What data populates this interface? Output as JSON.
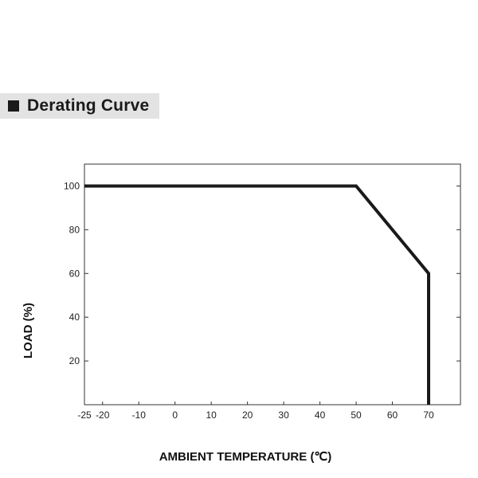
{
  "header": {
    "title": "Derating Curve",
    "square_color": "#1a1a1a",
    "band_color": "#e3e3e3"
  },
  "chart_data": {
    "type": "line",
    "title": "Derating Curve",
    "xlabel": "AMBIENT TEMPERATURE (℃)",
    "ylabel": "LOAD (%)",
    "xlim": [
      -25,
      70
    ],
    "ylim": [
      0,
      110
    ],
    "xticks": [
      -25,
      -20,
      -10,
      0,
      10,
      20,
      30,
      40,
      50,
      60,
      70
    ],
    "yticks": [
      20,
      40,
      60,
      80,
      100
    ],
    "grid": false,
    "series": [
      {
        "x": [
          -25,
          50,
          70,
          70
        ],
        "y": [
          100,
          100,
          60,
          0
        ],
        "color": "#1a1a1a"
      }
    ]
  }
}
